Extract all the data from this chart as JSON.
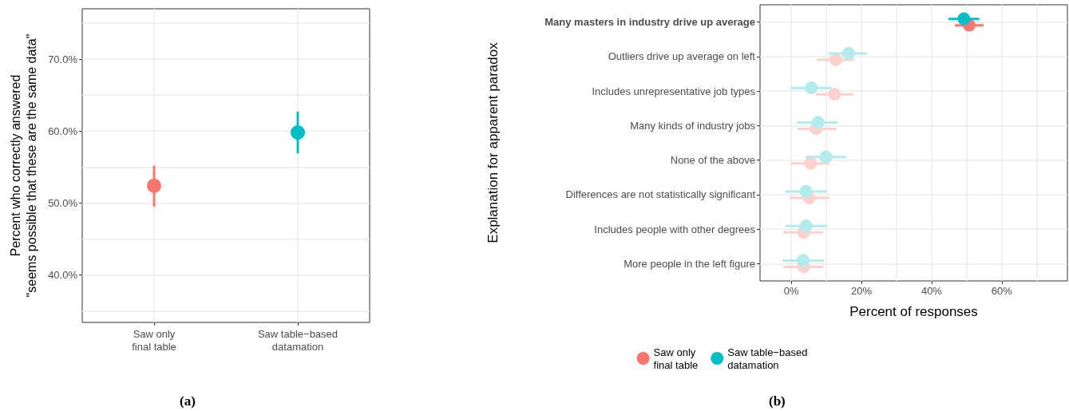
{
  "chart_data": [
    {
      "type": "scatter",
      "ylabel": "Percent who correctly answered\n\"seems possible that these are the same data\"",
      "categories": [
        "Saw only\nfinal table",
        "Saw table−based\ndatamation"
      ],
      "series": [
        {
          "color": "#F8766D",
          "colors": [
            "#F8766D",
            "#00BFC4"
          ],
          "values": [
            52.4,
            59.8
          ],
          "errors": [
            [
              49.5,
              55.2
            ],
            [
              56.9,
              62.7
            ]
          ]
        }
      ],
      "ylim": [
        33.4,
        77
      ],
      "yticks": [
        {
          "value": 35,
          "label": null
        },
        {
          "value": 40,
          "label": "40.0%"
        },
        {
          "value": 45,
          "label": null
        },
        {
          "value": 50,
          "label": "50.0%"
        },
        {
          "value": 55,
          "label": null
        },
        {
          "value": 60,
          "label": "60.0%"
        },
        {
          "value": 65,
          "label": null
        },
        {
          "value": 70,
          "label": "70.0%"
        },
        {
          "value": 75,
          "label": null
        }
      ],
      "grid": true,
      "marker": "circle",
      "annotations": [
        "(a)"
      ]
    },
    {
      "type": "scatter",
      "orientation": "horizontal",
      "xlabel": "Percent of responses",
      "ylabel": "Explanation for apparent paradox",
      "categories": [
        "Many masters in industry drive up average",
        "Outliers drive up average on left",
        "Includes unrepresentative job types",
        "Many kinds of industry jobs",
        "None of the above",
        "Differences are not statistically significant",
        "Includes people with other degrees",
        "More people in the left figure"
      ],
      "series": [
        {
          "name": "Saw only\nfinal table",
          "color": "#F8766D",
          "colors": [
            "#F8766D",
            "#fcd0cc",
            "#fcd0cc",
            "#fcd0cc",
            "#fcd0cc",
            "#fcd0cc",
            "#fcd0cc",
            "#fcd0cc"
          ],
          "values": [
            50.7,
            12.7,
            12.3,
            7.1,
            5.5,
            5.1,
            3.5,
            3.5
          ],
          "errors": [
            [
              46.6,
              54.8
            ],
            [
              7.2,
              18.0
            ],
            [
              6.9,
              17.7
            ],
            [
              1.7,
              12.8
            ],
            [
              -0.2,
              11.0
            ],
            [
              -0.5,
              10.8
            ],
            [
              -2.3,
              9.1
            ],
            [
              -2.3,
              9.1
            ]
          ]
        },
        {
          "name": "Saw table−based\ndatamation",
          "color": "#00BFC4",
          "colors": [
            "#00BFC4",
            "#b2ebec",
            "#b2ebec",
            "#b2ebec",
            "#b2ebec",
            "#b2ebec",
            "#b2ebec",
            "#b2ebec"
          ],
          "values": [
            49.2,
            16.3,
            5.7,
            7.6,
            9.9,
            4.2,
            4.2,
            3.4
          ],
          "errors": [
            [
              44.8,
              53.6
            ],
            [
              10.6,
              21.7
            ],
            [
              -0.2,
              11.5
            ],
            [
              1.7,
              13.3
            ],
            [
              4.1,
              15.6
            ],
            [
              -1.7,
              10.2
            ],
            [
              -1.7,
              10.2
            ],
            [
              -2.5,
              9.4
            ]
          ]
        }
      ],
      "xlim": [
        -8.9,
        78.7
      ],
      "xticks": [
        {
          "value": 0,
          "label": "0%"
        },
        {
          "value": 10,
          "label": null
        },
        {
          "value": 20,
          "label": "20%"
        },
        {
          "value": 30,
          "label": null
        },
        {
          "value": 40,
          "label": "40%"
        },
        {
          "value": 50,
          "label": null
        },
        {
          "value": 60,
          "label": "60%"
        },
        {
          "value": 70,
          "label": null
        }
      ],
      "grid": true,
      "legend": "bottom",
      "marker": "circle",
      "annotations": [
        "(b)"
      ]
    }
  ]
}
